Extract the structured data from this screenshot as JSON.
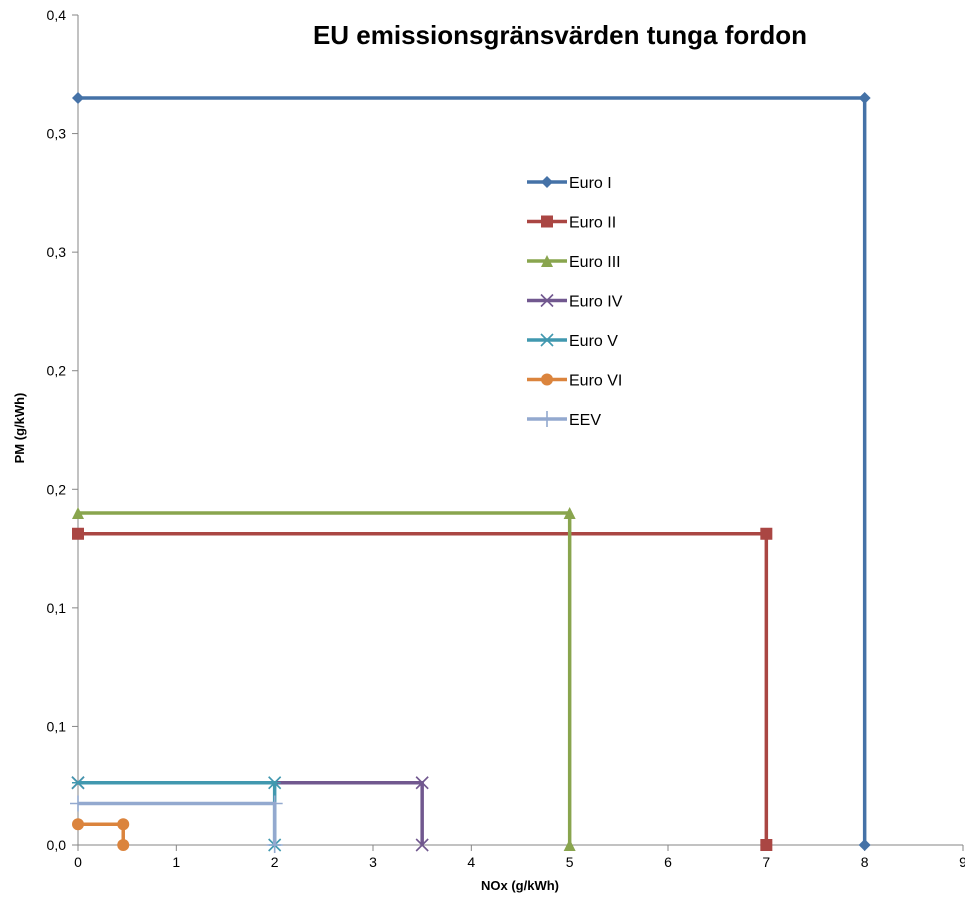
{
  "chart_data": {
    "type": "line",
    "title": "EU emissionsgränsvärden tunga fordon",
    "xlabel": "NOx (g/kWh)",
    "ylabel": "PM (g/kWh)",
    "xlim": [
      0,
      9
    ],
    "ylim": [
      0,
      0.4
    ],
    "x_ticks": [
      "0",
      "1",
      "2",
      "3",
      "4",
      "5",
      "6",
      "7",
      "8",
      "9"
    ],
    "y_ticks": [
      "0,0",
      "0,1",
      "0,1",
      "0,2",
      "0,2",
      "0,3",
      "0,3",
      "0,4"
    ],
    "grid": false,
    "legend_position": "center-right",
    "series": [
      {
        "name": "Euro I",
        "color": "#4572A7",
        "marker": "diamond",
        "points": [
          [
            0,
            0.36
          ],
          [
            8,
            0.36
          ],
          [
            8,
            0
          ]
        ]
      },
      {
        "name": "Euro II",
        "color": "#AA4643",
        "marker": "square",
        "points": [
          [
            0,
            0.15
          ],
          [
            7,
            0.15
          ],
          [
            7,
            0
          ]
        ]
      },
      {
        "name": "Euro III",
        "color": "#89A54E",
        "marker": "triangle",
        "points": [
          [
            0,
            0.16
          ],
          [
            5,
            0.16
          ],
          [
            5,
            0
          ]
        ]
      },
      {
        "name": "Euro IV",
        "color": "#71588F",
        "marker": "x",
        "points": [
          [
            0,
            0.03
          ],
          [
            3.5,
            0.03
          ],
          [
            3.5,
            0
          ]
        ]
      },
      {
        "name": "Euro V",
        "color": "#4198AF",
        "marker": "asterisk",
        "points": [
          [
            0,
            0.03
          ],
          [
            2,
            0.03
          ],
          [
            2,
            0
          ]
        ]
      },
      {
        "name": "Euro VI",
        "color": "#DB843D",
        "marker": "circle",
        "points": [
          [
            0,
            0.01
          ],
          [
            0.46,
            0.01
          ],
          [
            0.46,
            0
          ]
        ]
      },
      {
        "name": "EEV",
        "color": "#93A9CF",
        "marker": "plus",
        "points": [
          [
            0,
            0.02
          ],
          [
            2,
            0.02
          ],
          [
            2,
            0
          ]
        ]
      }
    ]
  }
}
